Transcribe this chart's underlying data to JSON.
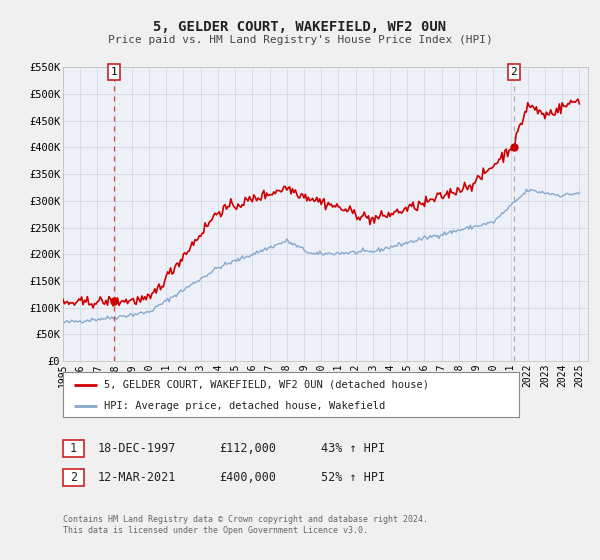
{
  "title": "5, GELDER COURT, WAKEFIELD, WF2 0UN",
  "subtitle": "Price paid vs. HM Land Registry's House Price Index (HPI)",
  "ylim": [
    0,
    550000
  ],
  "xlim_start": 1995.0,
  "xlim_end": 2025.5,
  "yticks": [
    0,
    50000,
    100000,
    150000,
    200000,
    250000,
    300000,
    350000,
    400000,
    450000,
    500000,
    550000
  ],
  "ytick_labels": [
    "£0",
    "£50K",
    "£100K",
    "£150K",
    "£200K",
    "£250K",
    "£300K",
    "£350K",
    "£400K",
    "£450K",
    "£500K",
    "£550K"
  ],
  "xticks": [
    1995,
    1996,
    1997,
    1998,
    1999,
    2000,
    2001,
    2002,
    2003,
    2004,
    2005,
    2006,
    2007,
    2008,
    2009,
    2010,
    2011,
    2012,
    2013,
    2014,
    2015,
    2016,
    2017,
    2018,
    2019,
    2020,
    2021,
    2022,
    2023,
    2024,
    2025
  ],
  "sale1_x": 1997.96,
  "sale1_y": 112000,
  "sale1_label": "1",
  "sale1_date": "18-DEC-1997",
  "sale1_price": "£112,000",
  "sale1_hpi": "43% ↑ HPI",
  "sale2_x": 2021.19,
  "sale2_y": 400000,
  "sale2_label": "2",
  "sale2_date": "12-MAR-2021",
  "sale2_price": "£400,000",
  "sale2_hpi": "52% ↑ HPI",
  "color_red": "#cc0000",
  "color_blue": "#88aacc",
  "color_grid": "#d8dce8",
  "color_vline1": "#dd4444",
  "color_vline2": "#aaaaaa",
  "legend1": "5, GELDER COURT, WAKEFIELD, WF2 0UN (detached house)",
  "legend2": "HPI: Average price, detached house, Wakefield",
  "footnote1": "Contains HM Land Registry data © Crown copyright and database right 2024.",
  "footnote2": "This data is licensed under the Open Government Licence v3.0.",
  "bg_color": "#f0f0f0",
  "plot_bg": "#eef0f8"
}
